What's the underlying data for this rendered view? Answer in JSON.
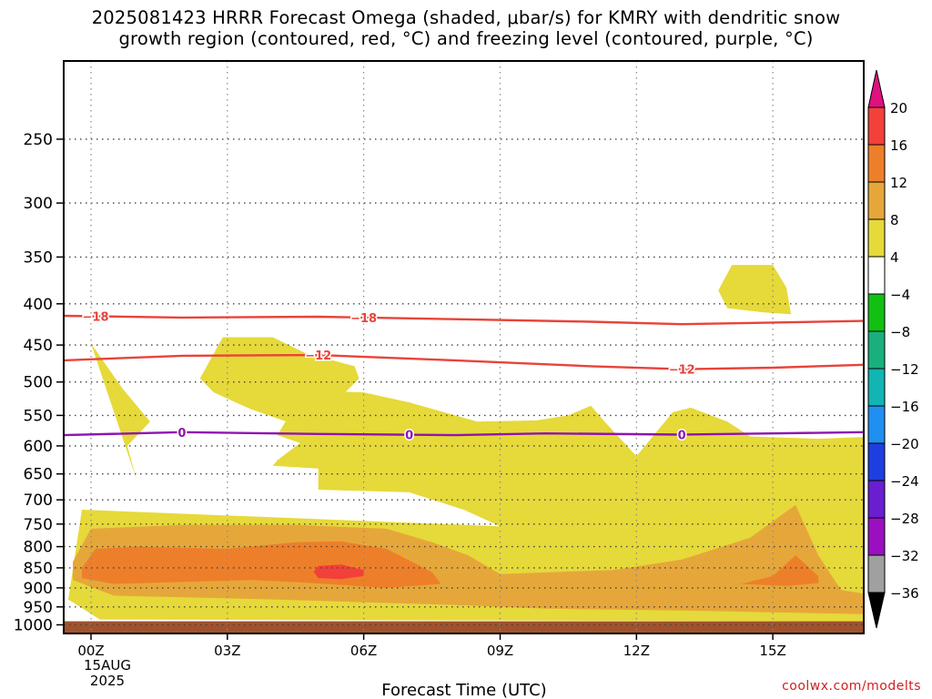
{
  "chart_data": {
    "type": "contour",
    "title_lines": [
      "2025081423 HRRR Forecast Omega (shaded, μbar/s) for KMRY with dendritic snow",
      "growth region (contoured, red, °C) and freezing level (contoured, purple, °C)"
    ],
    "xlabel": "Forecast Time (UTC)",
    "x_tick_labels": [
      "00Z",
      "03Z",
      "06Z",
      "09Z",
      "12Z",
      "15Z"
    ],
    "x_tick_hours": [
      0,
      3,
      6,
      9,
      12,
      15
    ],
    "x_date_label": [
      "15AUG",
      "2025"
    ],
    "xlim_hours": [
      -0.6,
      17
    ],
    "y_tick_labels": [
      "250",
      "300",
      "350",
      "400",
      "450",
      "500",
      "550",
      "600",
      "650",
      "700",
      "750",
      "800",
      "850",
      "900",
      "950",
      "1000"
    ],
    "y_tick_values": [
      250,
      300,
      350,
      400,
      450,
      500,
      550,
      600,
      650,
      700,
      750,
      800,
      850,
      900,
      950,
      1000
    ],
    "ylim_hPa": [
      200,
      1025
    ],
    "y_scale": "log",
    "grid": true,
    "ground_level_hPa": 990,
    "colorbar": {
      "labels": [
        "20",
        "16",
        "12",
        "8",
        "4",
        "−4",
        "−8",
        "−12",
        "−16",
        "−20",
        "−24",
        "−28",
        "−32",
        "−36"
      ],
      "colors": [
        "#e0117f",
        "#f2403a",
        "#ee7f2a",
        "#e6a73a",
        "#e6d93a",
        "#ffffff",
        "#12c012",
        "#19b07d",
        "#12b4b4",
        "#1f8ff0",
        "#1d3fe0",
        "#6a1ed0",
        "#9a10c0",
        "#a0a0a0",
        "#000000"
      ]
    },
    "omega_regions": [
      {
        "level": 4,
        "color": "#e6d93a",
        "polygons": [
          [
            [
              0,
              448
            ],
            [
              0.7,
              510
            ],
            [
              1.3,
              560
            ],
            [
              0.8,
              600
            ],
            [
              1.0,
              660
            ],
            [
              3.0,
              660
            ],
            [
              4.0,
              635
            ],
            [
              5.0,
              640
            ],
            [
              5.0,
              680
            ],
            [
              7.0,
              685
            ],
            [
              8.2,
              720
            ],
            [
              9.0,
              755
            ],
            [
              17,
              755
            ],
            [
              17,
              585
            ],
            [
              16,
              588
            ],
            [
              14.5,
              584
            ],
            [
              14,
              560
            ],
            [
              13.2,
              538
            ],
            [
              12.8,
              545
            ],
            [
              12,
              618
            ],
            [
              11.3,
              560
            ],
            [
              11.0,
              535
            ],
            [
              10.5,
              550
            ],
            [
              9.8,
              558
            ],
            [
              8.5,
              560
            ],
            [
              7.0,
              530
            ],
            [
              6.0,
              515
            ],
            [
              4.7,
              512
            ],
            [
              4.1,
              582
            ],
            [
              4.6,
              595
            ],
            [
              4.1,
              625
            ],
            [
              4.0,
              635
            ],
            [
              3.0,
              660
            ],
            [
              1.0,
              660
            ],
            [
              0,
              448
            ],
            [
              -0.2,
              720
            ],
            [
              -0.5,
              930
            ],
            [
              0.2,
              985
            ],
            [
              17,
              990
            ],
            [
              17,
              755
            ],
            [
              9.0,
              755
            ],
            [
              -0.2,
              720
            ]
          ],
          [
            [
              2.4,
              495
            ],
            [
              2.9,
              440
            ],
            [
              4.0,
              440
            ],
            [
              4.7,
              460
            ],
            [
              5.8,
              478
            ],
            [
              5.9,
              495
            ],
            [
              5.3,
              535
            ],
            [
              4.5,
              565
            ],
            [
              3.5,
              540
            ],
            [
              2.7,
              515
            ]
          ],
          [
            [
              13.8,
              385
            ],
            [
              14.1,
              358
            ],
            [
              15.0,
              358
            ],
            [
              15.3,
              382
            ],
            [
              15.4,
              412
            ],
            [
              14.8,
              410
            ],
            [
              14.0,
              405
            ]
          ]
        ]
      },
      {
        "level": 8,
        "color": "#e6a73a",
        "polygons": [
          [
            [
              -0.4,
              835
            ],
            [
              0,
              760
            ],
            [
              2.0,
              752
            ],
            [
              4.5,
              752
            ],
            [
              6.5,
              760
            ],
            [
              7.5,
              790
            ],
            [
              8.3,
              820
            ],
            [
              9.0,
              865
            ],
            [
              11.5,
              855
            ],
            [
              13.0,
              830
            ],
            [
              14.5,
              780
            ],
            [
              15.5,
              710
            ],
            [
              16.0,
              820
            ],
            [
              16.5,
              905
            ],
            [
              17,
              915
            ],
            [
              17,
              970
            ],
            [
              13.0,
              960
            ],
            [
              10.0,
              955
            ],
            [
              8.0,
              945
            ],
            [
              4.0,
              930
            ],
            [
              0.5,
              920
            ],
            [
              -0.4,
              880
            ]
          ]
        ]
      },
      {
        "level": 12,
        "color": "#ee7f2a",
        "polygons": [
          [
            [
              -0.2,
              850
            ],
            [
              0.1,
              805
            ],
            [
              1.0,
              800
            ],
            [
              3.0,
              805
            ],
            [
              4.5,
              790
            ],
            [
              5.5,
              788
            ],
            [
              6.5,
              805
            ],
            [
              7.5,
              860
            ],
            [
              7.7,
              890
            ],
            [
              6.5,
              900
            ],
            [
              4.5,
              885
            ],
            [
              3.5,
              880
            ],
            [
              0.5,
              890
            ],
            [
              -0.2,
              875
            ]
          ],
          [
            [
              15.0,
              870
            ],
            [
              15.5,
              820
            ],
            [
              16.0,
              870
            ],
            [
              16.0,
              888
            ],
            [
              15.3,
              895
            ],
            [
              14.3,
              890
            ]
          ]
        ]
      },
      {
        "level": 16,
        "color": "#f2403a",
        "polygons": [
          [
            [
              4.9,
              860
            ],
            [
              5.0,
              845
            ],
            [
              5.5,
              842
            ],
            [
              6.0,
              855
            ],
            [
              6.0,
              870
            ],
            [
              5.5,
              878
            ],
            [
              5.0,
              875
            ]
          ]
        ]
      }
    ],
    "contours": [
      {
        "label": "−18",
        "color": "#e8433a",
        "label_hours": [
          0.1,
          6.0
        ],
        "points": [
          [
            -0.6,
            414
          ],
          [
            2.0,
            416
          ],
          [
            5.0,
            415
          ],
          [
            8.0,
            418
          ],
          [
            11.0,
            421
          ],
          [
            13.0,
            424
          ],
          [
            15.0,
            422
          ],
          [
            17,
            420
          ]
        ]
      },
      {
        "label": "−12",
        "color": "#e8433a",
        "label_hours": [
          5.0,
          13.0
        ],
        "points": [
          [
            -0.6,
            470
          ],
          [
            2.0,
            464
          ],
          [
            5.0,
            463
          ],
          [
            8.0,
            470
          ],
          [
            11.0,
            478
          ],
          [
            13.0,
            482
          ],
          [
            15.0,
            480
          ],
          [
            17,
            476
          ]
        ]
      },
      {
        "label": "0",
        "color": "#8f14b0",
        "label_hours": [
          2.0,
          7.0,
          13.0
        ],
        "points": [
          [
            -0.6,
            582
          ],
          [
            2.0,
            577
          ],
          [
            5.0,
            580
          ],
          [
            8.0,
            582
          ],
          [
            10.0,
            579
          ],
          [
            13.0,
            581
          ],
          [
            15.0,
            579
          ],
          [
            17,
            577
          ]
        ]
      }
    ]
  },
  "credit": "coolwx.com/modelts"
}
